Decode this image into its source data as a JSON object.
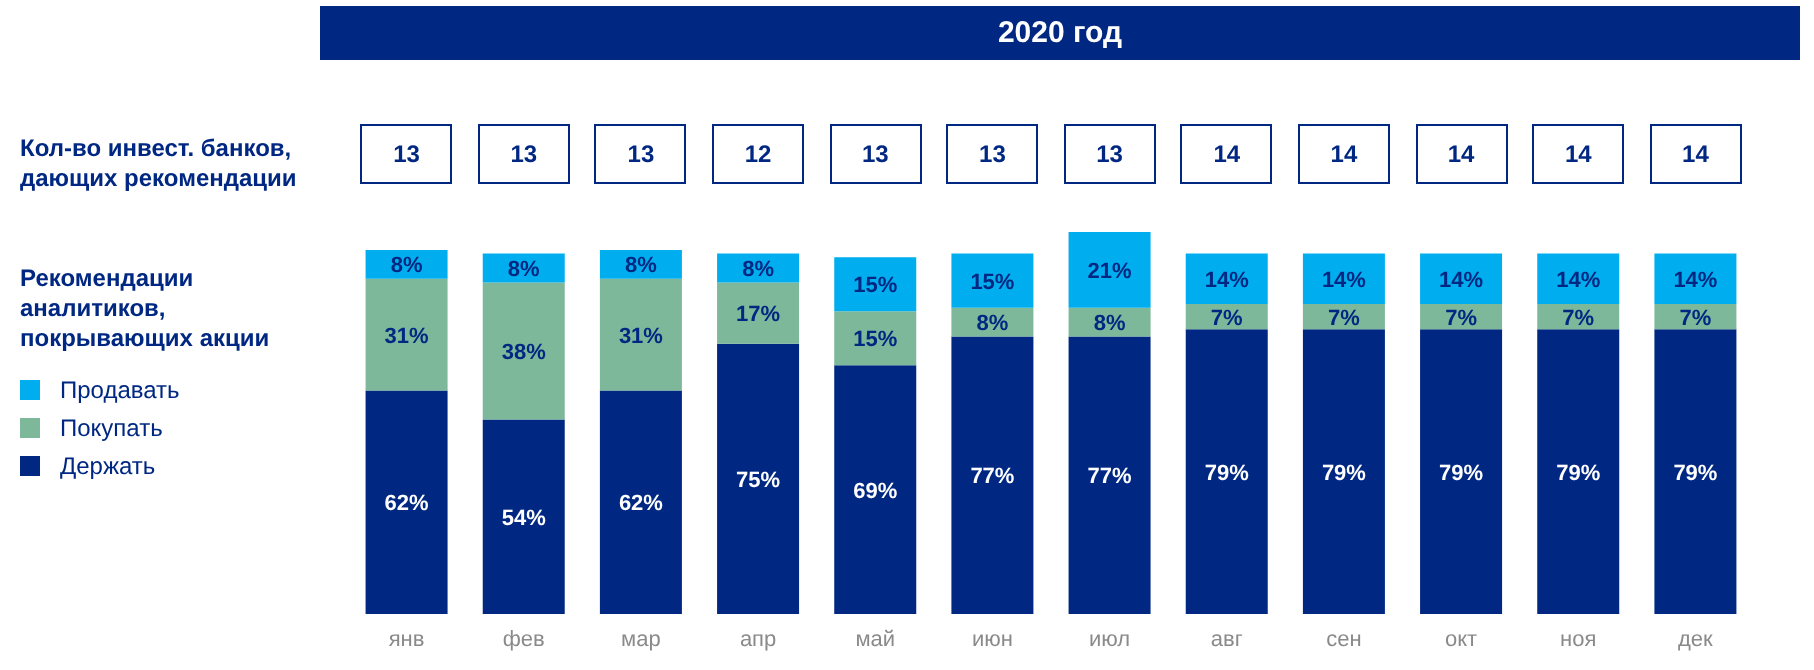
{
  "chart_data": {
    "type": "bar",
    "title": "2020 год",
    "stacked": true,
    "legend": "left",
    "legend_title": "Рекомендации аналитиков, покрывающих акции",
    "categories": [
      "янв",
      "фев",
      "мар",
      "апр",
      "май",
      "июн",
      "июл",
      "авг",
      "сен",
      "окт",
      "ноя",
      "дек"
    ],
    "series": [
      {
        "name": "Держать",
        "color": "#002882",
        "values": [
          62,
          54,
          62,
          75,
          69,
          77,
          77,
          79,
          79,
          79,
          79,
          79
        ],
        "value_labels": [
          "62%",
          "54%",
          "62%",
          "75%",
          "69%",
          "77%",
          "77%",
          "79%",
          "79%",
          "79%",
          "79%",
          "79%"
        ]
      },
      {
        "name": "Покупать",
        "color": "#7db89a",
        "values": [
          31,
          38,
          31,
          17,
          15,
          8,
          8,
          7,
          7,
          7,
          7,
          7
        ],
        "value_labels": [
          "31%",
          "38%",
          "31%",
          "17%",
          "15%",
          "8%",
          "8%",
          "7%",
          "7%",
          "7%",
          "7%",
          "7%"
        ]
      },
      {
        "name": "Продавать",
        "color": "#00aeef",
        "values": [
          8,
          8,
          8,
          8,
          15,
          15,
          21,
          14,
          14,
          14,
          14,
          14
        ],
        "value_labels": [
          "8%",
          "8%",
          "8%",
          "8%",
          "15%",
          "15%",
          "21%",
          "14%",
          "14%",
          "14%",
          "14%",
          "14%"
        ]
      }
    ],
    "annotations": [
      "Кол-во инвест. банков, дающих рекомендации",
      "13",
      "13",
      "13",
      "12",
      "13",
      "13",
      "13",
      "14",
      "14",
      "14",
      "14",
      "14"
    ]
  }
}
